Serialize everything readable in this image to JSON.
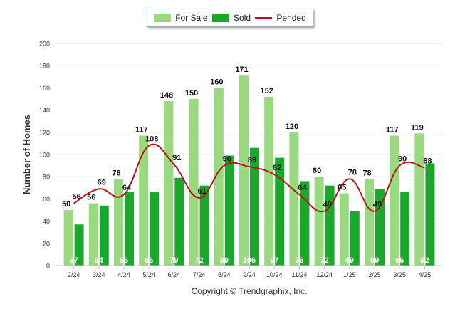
{
  "legend": {
    "for_sale": "For Sale",
    "sold": "Sold",
    "pended": "Pended"
  },
  "copyright": "Copyright © Trendgraphix, Inc.",
  "colors": {
    "for_sale": "#9ad97f",
    "sold": "#1aa82c",
    "pended": "#b8141a",
    "grid": "#e6e6e6"
  },
  "chart_data": {
    "type": "bar",
    "title": "",
    "xlabel": "",
    "ylabel": "Number of Homes",
    "ylim": [
      0,
      200
    ],
    "yticks": [
      0,
      20,
      40,
      60,
      80,
      100,
      120,
      140,
      160,
      180,
      200
    ],
    "legend_position": "top-center",
    "categories": [
      "2/24",
      "3/24",
      "4/24",
      "5/24",
      "6/24",
      "7/24",
      "8/24",
      "9/24",
      "10/24",
      "11/24",
      "12/24",
      "1/25",
      "2/25",
      "3/25",
      "4/25"
    ],
    "series": [
      {
        "name": "For Sale",
        "kind": "bar",
        "values": [
          50,
          56,
          78,
          117,
          148,
          150,
          160,
          171,
          152,
          120,
          80,
          65,
          78,
          117,
          119
        ]
      },
      {
        "name": "Sold",
        "kind": "bar",
        "values": [
          37,
          54,
          66,
          66,
          79,
          72,
          99,
          106,
          97,
          76,
          72,
          49,
          69,
          66,
          92
        ]
      },
      {
        "name": "Pended",
        "kind": "line",
        "values": [
          56,
          69,
          64,
          108,
          91,
          61,
          90,
          89,
          82,
          64,
          49,
          78,
          49,
          90,
          88
        ]
      }
    ]
  }
}
